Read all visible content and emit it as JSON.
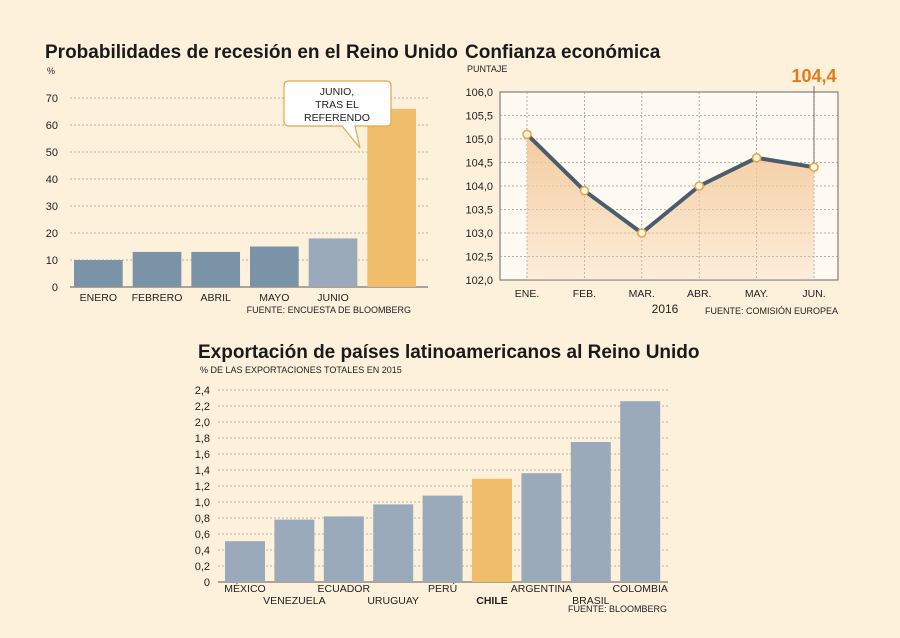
{
  "colors": {
    "background": "#fdf1dc",
    "bar_dark": "#7b93a7",
    "bar_light": "#9aaabb",
    "highlight": "#f0bd6a",
    "line": "#4a5d6e",
    "area": "#f3c99a",
    "accent_text": "#e07b1a"
  },
  "chart_data": [
    {
      "type": "bar",
      "title": "Probabilidades de recesión en el Reino Unido",
      "ylabel": "%",
      "categories": [
        "ENERO",
        "FEBRERO",
        "ABRIL",
        "MAYO",
        "JUNIO",
        ""
      ],
      "values": [
        10,
        13,
        13,
        15,
        18,
        66
      ],
      "ylim": [
        0,
        70
      ],
      "yticks": [
        0,
        10,
        20,
        30,
        40,
        50,
        60,
        70
      ],
      "annotation": "JUNIO,\nTRAS EL\nREFERENDO",
      "source": "FUENTE: ENCUESTA DE BLOOMBERG",
      "grid": true
    },
    {
      "type": "area",
      "title": "Confianza económica",
      "ylabel": "PUNTAJE",
      "categories": [
        "ENE.",
        "FEB.",
        "MAR.",
        "ABR.",
        "MAY.",
        "JUN."
      ],
      "values": [
        105.1,
        103.9,
        103.0,
        104.0,
        104.6,
        104.4
      ],
      "ylim": [
        102.0,
        106.0
      ],
      "yticks": [
        "102,0",
        "102,5",
        "103,0",
        "103,5",
        "104,0",
        "104,5",
        "105,0",
        "105,5",
        "106,0"
      ],
      "year_label": "2016",
      "highlight_value": "104,4",
      "source": "FUENTE: COMISIÓN EUROPEA",
      "grid": true
    },
    {
      "type": "bar",
      "title": "Exportación de países latinoamericanos al Reino Unido",
      "ylabel": "% DE LAS EXPORTACIONES TOTALES EN 2015",
      "categories": [
        "MÉXICO",
        "VENEZUELA",
        "ECUADOR",
        "URUGUAY",
        "PERÚ",
        "CHILE",
        "ARGENTINA",
        "BRASIL",
        "COLOMBIA"
      ],
      "values": [
        0.51,
        0.78,
        0.82,
        0.97,
        1.08,
        1.29,
        1.36,
        1.75,
        2.26
      ],
      "ylim": [
        0,
        2.4
      ],
      "yticks": [
        "0",
        "0,2",
        "0,4",
        "0,6",
        "0,8",
        "1,0",
        "1,2",
        "1,4",
        "1,6",
        "1,8",
        "2,0",
        "2,2",
        "2,4"
      ],
      "highlight_category": "CHILE",
      "source": "FUENTE: BLOOMBERG",
      "grid": true
    }
  ]
}
